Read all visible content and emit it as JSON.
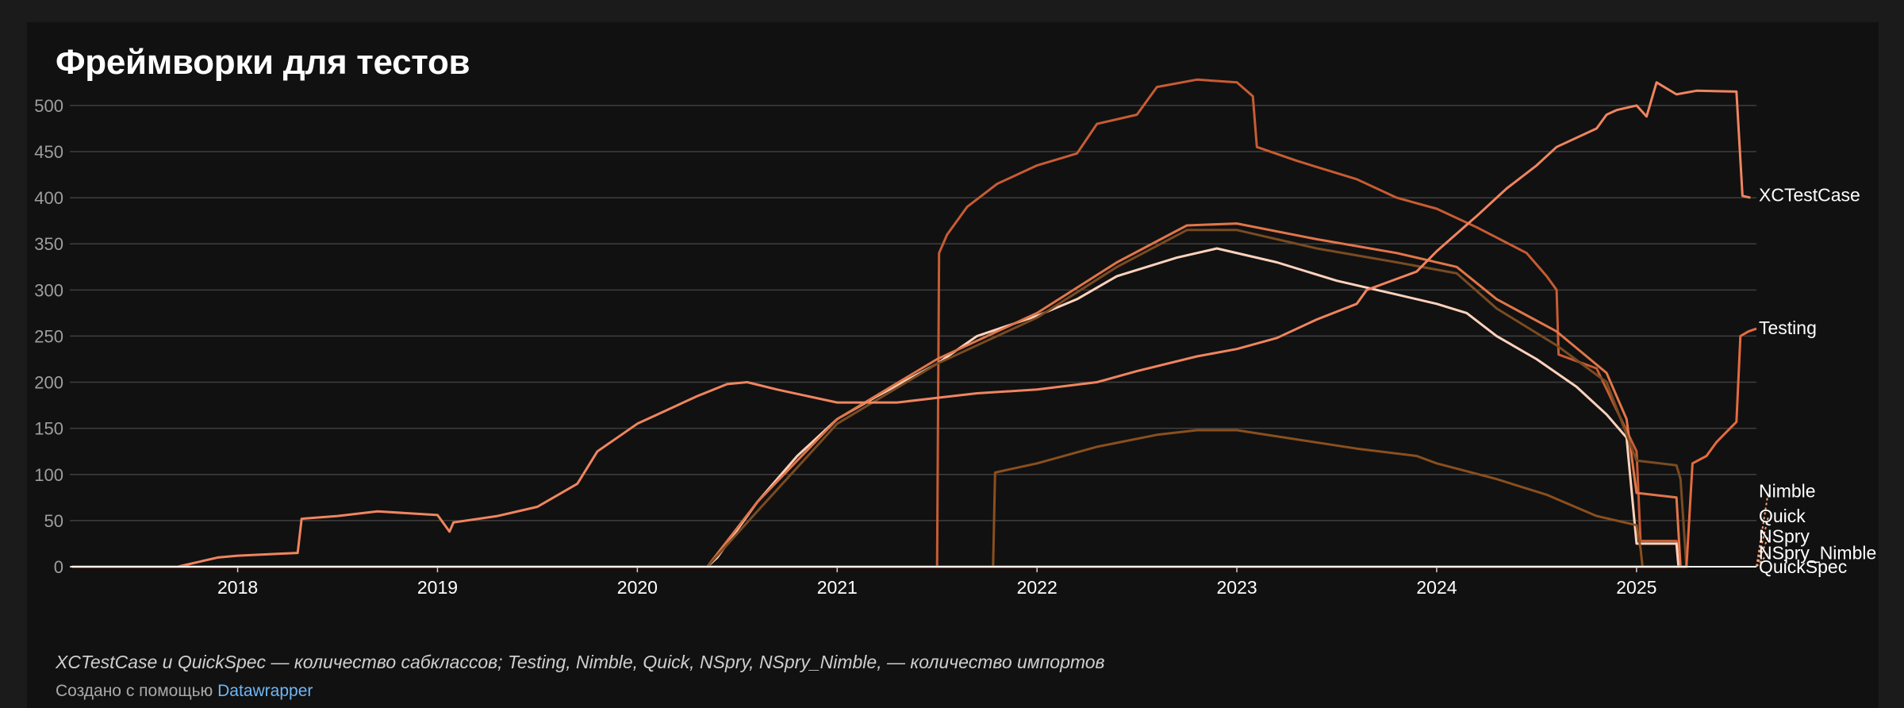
{
  "title": "Фреймворки для тестов",
  "notes": "XCTestCase и QuickSpec — количество сабклассов; Testing, Nimble, Quick, NSpry, NSpry_Nimble, — количество импортов",
  "credit": {
    "prefix": "Создано с помощью",
    "link": "Datawrapper"
  },
  "chart_data": {
    "type": "line",
    "title": "Фреймворки для тестов",
    "xlabel": "",
    "ylabel": "",
    "xlim": [
      2017.16,
      2025.6
    ],
    "ylim": [
      0,
      530
    ],
    "x_ticks": [
      "2018",
      "2019",
      "2020",
      "2021",
      "2022",
      "2023",
      "2024",
      "2025"
    ],
    "y_ticks": [
      0,
      50,
      100,
      150,
      200,
      250,
      300,
      350,
      400,
      450,
      500
    ],
    "grid": true,
    "legend": "direct labels at line ends",
    "series": [
      {
        "name": "XCTestCase",
        "color": "#f0855f",
        "width": 3,
        "x": [
          2017.17,
          2017.7,
          2017.9,
          2018.0,
          2018.2,
          2018.3,
          2018.32,
          2018.5,
          2018.7,
          2019.0,
          2019.06,
          2019.08,
          2019.3,
          2019.5,
          2019.7,
          2019.8,
          2019.9,
          2020.0,
          2020.1,
          2020.2,
          2020.3,
          2020.45,
          2020.55,
          2020.7,
          2020.85,
          2021.0,
          2021.3,
          2021.5,
          2021.7,
          2022.0,
          2022.3,
          2022.5,
          2022.8,
          2023.0,
          2023.2,
          2023.4,
          2023.6,
          2023.65,
          2023.8,
          2023.9,
          2024.0,
          2024.2,
          2024.35,
          2024.5,
          2024.6,
          2024.8,
          2024.85,
          2024.9,
          2025.0,
          2025.05,
          2025.1,
          2025.2,
          2025.3,
          2025.5,
          2025.53,
          2025.57
        ],
        "y": [
          0,
          0,
          10,
          12,
          14,
          15,
          52,
          55,
          60,
          56,
          38,
          48,
          55,
          65,
          90,
          125,
          140,
          155,
          165,
          175,
          185,
          198,
          200,
          192,
          185,
          178,
          178,
          183,
          188,
          192,
          200,
          212,
          228,
          236,
          248,
          268,
          285,
          300,
          312,
          320,
          342,
          380,
          410,
          435,
          455,
          475,
          490,
          495,
          500,
          488,
          525,
          512,
          516,
          515,
          402,
          400
        ]
      },
      {
        "name": "Testing",
        "color": "#e56b3f",
        "width": 3,
        "x": [
          2017.17,
          2025.25,
          2025.28,
          2025.35,
          2025.4,
          2025.5,
          2025.52,
          2025.56,
          2025.6
        ],
        "y": [
          0,
          0,
          112,
          120,
          135,
          157,
          250,
          255,
          258
        ]
      },
      {
        "name": "Nimble",
        "color": "#f2a07c",
        "width": 2,
        "dashed": true,
        "x": [
          2017.17,
          2025.6,
          2025.66
        ],
        "y": [
          0,
          0,
          82
        ]
      },
      {
        "name": "Quick",
        "color": "#f2a07c",
        "width": 2,
        "dashed": true,
        "x": [
          2017.17,
          2025.6,
          2025.66
        ],
        "y": [
          0,
          0,
          55
        ]
      },
      {
        "name": "NSpry",
        "color": "#f2a07c",
        "width": 2,
        "dashed": true,
        "x": [
          2017.17,
          2025.6,
          2025.66
        ],
        "y": [
          0,
          0,
          33
        ]
      },
      {
        "name": "NSpry_Nimble",
        "color": "#f2a07c",
        "width": 2,
        "dashed": true,
        "x": [
          2017.17,
          2025.6,
          2025.66
        ],
        "y": [
          0,
          0,
          15
        ]
      },
      {
        "name": "QuickSpec",
        "color": "#ffffff",
        "width": 2,
        "x": [
          2017.17,
          2025.6
        ],
        "y": [
          0,
          0
        ]
      },
      {
        "name": "",
        "color": "#c75c33",
        "width": 3,
        "x": [
          2017.17,
          2021.5,
          2021.51,
          2021.55,
          2021.65,
          2021.8,
          2022.0,
          2022.2,
          2022.3,
          2022.5,
          2022.6,
          2022.8,
          2023.0,
          2023.08,
          2023.1,
          2023.3,
          2023.6,
          2023.8,
          2024.0,
          2024.2,
          2024.45,
          2024.55,
          2024.6,
          2024.61,
          2024.8,
          2025.0,
          2025.02,
          2025.2,
          2025.22
        ],
        "y": [
          0,
          0,
          340,
          360,
          390,
          415,
          435,
          448,
          480,
          490,
          520,
          528,
          525,
          510,
          455,
          440,
          420,
          400,
          388,
          368,
          340,
          315,
          300,
          230,
          215,
          125,
          28,
          28,
          0
        ]
      },
      {
        "name": "",
        "color": "#ffd2bc",
        "width": 3,
        "x": [
          2017.17,
          2020.35,
          2020.4,
          2020.6,
          2020.8,
          2021.0,
          2021.2,
          2021.5,
          2021.7,
          2022.0,
          2022.2,
          2022.4,
          2022.7,
          2022.9,
          2023.2,
          2023.5,
          2023.8,
          2024.0,
          2024.15,
          2024.3,
          2024.5,
          2024.7,
          2024.85,
          2024.95,
          2025.0,
          2025.2,
          2025.21
        ],
        "y": [
          0,
          0,
          10,
          70,
          120,
          160,
          185,
          220,
          250,
          272,
          290,
          315,
          335,
          345,
          330,
          310,
          295,
          285,
          275,
          250,
          225,
          195,
          165,
          140,
          25,
          25,
          0
        ]
      },
      {
        "name": "",
        "color": "#e1764a",
        "width": 3,
        "x": [
          2017.17,
          2020.35,
          2020.6,
          2021.0,
          2021.5,
          2022.0,
          2022.4,
          2022.75,
          2023.0,
          2023.4,
          2023.8,
          2024.1,
          2024.3,
          2024.6,
          2024.85,
          2024.95,
          2025.0,
          2025.2,
          2025.22
        ],
        "y": [
          0,
          0,
          70,
          160,
          225,
          275,
          330,
          370,
          372,
          355,
          340,
          325,
          290,
          255,
          210,
          160,
          80,
          75,
          0
        ]
      },
      {
        "name": "",
        "color": "#7a4b22",
        "width": 3,
        "x": [
          2017.17,
          2020.35,
          2020.6,
          2021.0,
          2021.5,
          2022.0,
          2022.4,
          2022.75,
          2023.0,
          2023.4,
          2023.8,
          2024.1,
          2024.3,
          2024.6,
          2024.85,
          2025.0,
          2025.2,
          2025.22,
          2025.25
        ],
        "y": [
          0,
          0,
          60,
          155,
          220,
          270,
          325,
          365,
          365,
          345,
          330,
          318,
          280,
          240,
          200,
          115,
          110,
          95,
          0
        ]
      },
      {
        "name": "",
        "color": "#8a4f1e",
        "width": 3,
        "x": [
          2017.17,
          2021.78,
          2021.79,
          2021.85,
          2022.0,
          2022.3,
          2022.6,
          2022.8,
          2023.0,
          2023.3,
          2023.6,
          2023.9,
          2024.0,
          2024.3,
          2024.55,
          2024.8,
          2025.0,
          2025.02,
          2025.03
        ],
        "y": [
          0,
          0,
          102,
          105,
          112,
          130,
          143,
          148,
          148,
          138,
          128,
          120,
          112,
          95,
          78,
          55,
          45,
          20,
          0
        ]
      }
    ]
  }
}
